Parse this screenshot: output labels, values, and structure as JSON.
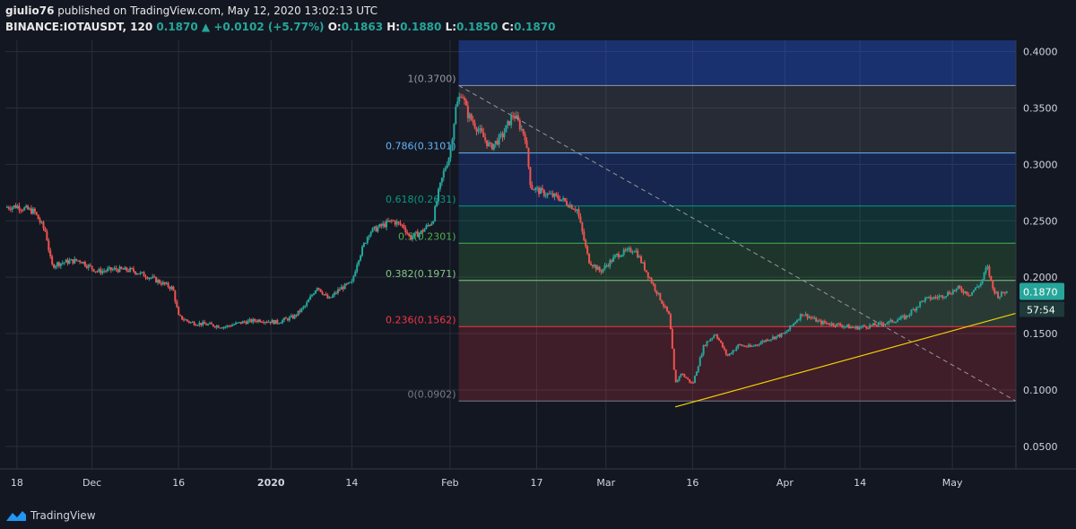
{
  "header": {
    "author": "giulio76",
    "published_text": "published on TradingView.com, May 12, 2020 13:02:13 UTC",
    "symbol": "BINANCE:IOTAUSDT, 120",
    "last": "0.1870",
    "change": "+0.0102 (+5.77%)",
    "o_label": "O:",
    "o": "0.1863",
    "h_label": "H:",
    "h": "0.1880",
    "l_label": "L:",
    "l": "0.1850",
    "c_label": "C:",
    "c": "0.1870"
  },
  "footer": {
    "brand": "TradingView"
  },
  "colors": {
    "background": "#131722",
    "grid": "#2a2e39",
    "up": "#26a69a",
    "down": "#ef5350",
    "trendline": "#f0d000",
    "fib_0": "#787b86",
    "fib_236": "#f23645",
    "fib_382": "#81c784",
    "fib_5": "#4caf50",
    "fib_618": "#089981",
    "fib_786": "#64b5f6",
    "fib_1": "#9598a1"
  },
  "chart_data": {
    "type": "candlestick",
    "y_ticks": [
      "0.4000",
      "0.3500",
      "0.3000",
      "0.2500",
      "0.2000",
      "0.1500",
      "0.1000",
      "0.0500"
    ],
    "ylim": [
      0.03,
      0.41
    ],
    "x_ticks": [
      {
        "label": "18",
        "x": 0
      },
      {
        "label": "Dec",
        "x": 13
      },
      {
        "label": "16",
        "x": 28
      },
      {
        "label": "2020",
        "x": 44
      },
      {
        "label": "14",
        "x": 58
      },
      {
        "label": "Feb",
        "x": 75
      },
      {
        "label": "17",
        "x": 90
      },
      {
        "label": "Mar",
        "x": 102
      },
      {
        "label": "16",
        "x": 117
      },
      {
        "label": "Apr",
        "x": 133
      },
      {
        "label": "14",
        "x": 146
      },
      {
        "label": "May",
        "x": 162
      }
    ],
    "x_range": [
      -2,
      173
    ],
    "price_path": [
      [
        -2,
        0.262
      ],
      [
        0,
        0.263
      ],
      [
        3,
        0.258
      ],
      [
        5,
        0.24
      ],
      [
        6,
        0.21
      ],
      [
        7,
        0.212
      ],
      [
        9,
        0.214
      ],
      [
        11,
        0.215
      ],
      [
        12,
        0.211
      ],
      [
        14,
        0.205
      ],
      [
        17,
        0.207
      ],
      [
        20,
        0.206
      ],
      [
        23,
        0.2
      ],
      [
        25,
        0.195
      ],
      [
        27,
        0.19
      ],
      [
        28,
        0.165
      ],
      [
        30,
        0.16
      ],
      [
        33,
        0.158
      ],
      [
        36,
        0.156
      ],
      [
        39,
        0.16
      ],
      [
        42,
        0.162
      ],
      [
        45,
        0.16
      ],
      [
        48,
        0.165
      ],
      [
        50,
        0.175
      ],
      [
        52,
        0.192
      ],
      [
        54,
        0.18
      ],
      [
        56,
        0.19
      ],
      [
        58,
        0.195
      ],
      [
        59,
        0.215
      ],
      [
        61,
        0.24
      ],
      [
        63,
        0.245
      ],
      [
        65,
        0.25
      ],
      [
        67,
        0.245
      ],
      [
        68,
        0.235
      ],
      [
        70,
        0.24
      ],
      [
        72,
        0.25
      ],
      [
        73,
        0.275
      ],
      [
        74,
        0.295
      ],
      [
        75,
        0.31
      ],
      [
        76,
        0.35
      ],
      [
        77,
        0.365
      ],
      [
        78,
        0.345
      ],
      [
        80,
        0.33
      ],
      [
        82,
        0.315
      ],
      [
        84,
        0.325
      ],
      [
        86,
        0.345
      ],
      [
        88,
        0.325
      ],
      [
        89,
        0.28
      ],
      [
        91,
        0.275
      ],
      [
        94,
        0.27
      ],
      [
        97,
        0.26
      ],
      [
        99,
        0.215
      ],
      [
        101,
        0.205
      ],
      [
        104,
        0.22
      ],
      [
        107,
        0.225
      ],
      [
        109,
        0.205
      ],
      [
        111,
        0.185
      ],
      [
        113,
        0.165
      ],
      [
        114,
        0.105
      ],
      [
        115,
        0.115
      ],
      [
        117,
        0.105
      ],
      [
        119,
        0.14
      ],
      [
        121,
        0.15
      ],
      [
        123,
        0.13
      ],
      [
        125,
        0.14
      ],
      [
        127,
        0.138
      ],
      [
        130,
        0.145
      ],
      [
        133,
        0.15
      ],
      [
        136,
        0.168
      ],
      [
        139,
        0.16
      ],
      [
        142,
        0.158
      ],
      [
        145,
        0.155
      ],
      [
        148,
        0.157
      ],
      [
        151,
        0.16
      ],
      [
        154,
        0.165
      ],
      [
        157,
        0.18
      ],
      [
        160,
        0.183
      ],
      [
        163,
        0.19
      ],
      [
        165,
        0.185
      ],
      [
        167,
        0.195
      ],
      [
        168,
        0.21
      ],
      [
        169,
        0.19
      ],
      [
        170,
        0.183
      ],
      [
        171,
        0.187
      ]
    ],
    "fib_levels": [
      {
        "label": "1(0.3700)",
        "value": 0.37,
        "color": "#9598a1"
      },
      {
        "label": "0.786(0.3101)",
        "value": 0.3101,
        "color": "#64b5f6"
      },
      {
        "label": "0.618(0.2631)",
        "value": 0.2631,
        "color": "#089981"
      },
      {
        "label": "0.5(0.2301)",
        "value": 0.2301,
        "color": "#4caf50"
      },
      {
        "label": "0.382(0.1971)",
        "value": 0.1971,
        "color": "#81c784"
      },
      {
        "label": "0.236(0.1562)",
        "value": 0.1562,
        "color": "#f23645"
      },
      {
        "label": "0(0.0902)",
        "value": 0.0902,
        "color": "#787b86"
      }
    ],
    "fib_zones": [
      {
        "from": 0.37,
        "to": 0.41,
        "color": "#2962ff"
      },
      {
        "from": 0.3101,
        "to": 0.37,
        "color": "#787b86"
      },
      {
        "from": 0.2631,
        "to": 0.3101,
        "color": "#2962ff"
      },
      {
        "from": 0.2301,
        "to": 0.2631,
        "color": "#089981"
      },
      {
        "from": 0.1971,
        "to": 0.2301,
        "color": "#4caf50"
      },
      {
        "from": 0.1562,
        "to": 0.1971,
        "color": "#81c784"
      },
      {
        "from": 0.0902,
        "to": 0.1562,
        "color": "#f23645"
      }
    ],
    "fib_x_start": 76.5,
    "trendline": {
      "from": [
        114,
        0.085
      ],
      "to": [
        173,
        0.168
      ]
    },
    "diagonal": {
      "from": [
        76.5,
        0.37
      ],
      "to": [
        173,
        0.0902
      ]
    },
    "current_price": {
      "label": "0.1870",
      "value": 0.187
    },
    "countdown": {
      "label": "57:54"
    }
  }
}
